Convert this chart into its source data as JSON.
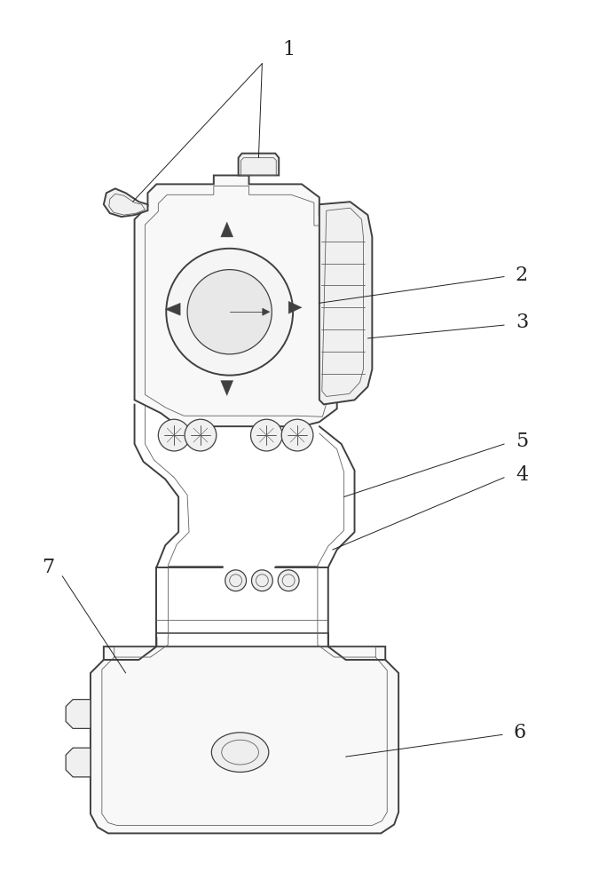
{
  "bg_color": "#ffffff",
  "line_color": "#404040",
  "line_thin": "#606060",
  "label_color": "#222222",
  "figsize": [
    6.84,
    10.0
  ],
  "dpi": 100,
  "lw_outer": 1.4,
  "lw_inner": 0.9,
  "lw_thin": 0.6,
  "lw_label": 0.7
}
